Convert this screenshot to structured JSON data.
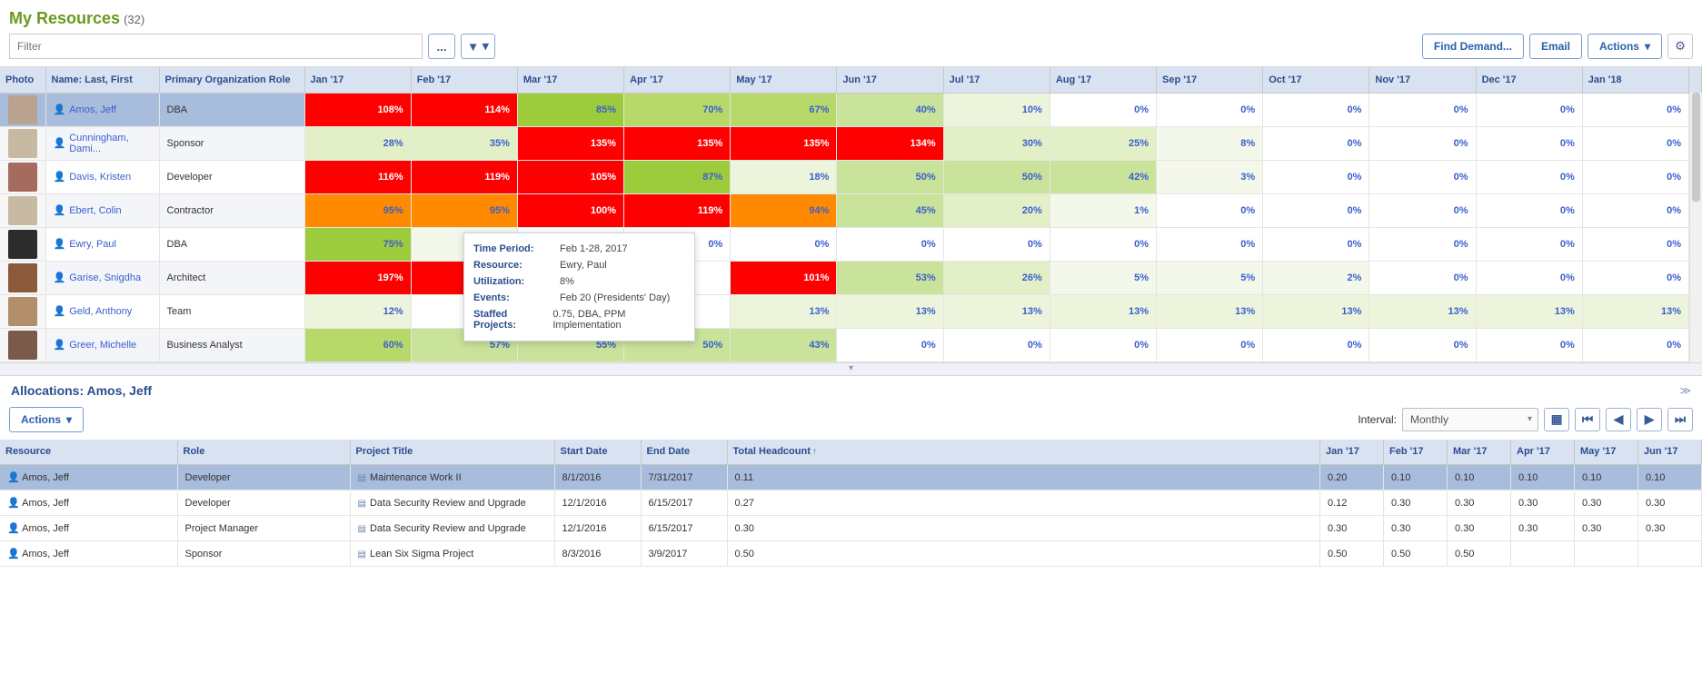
{
  "page": {
    "title": "My Resources",
    "count": "(32)"
  },
  "toolbar": {
    "filter_placeholder": "Filter",
    "more_label": "...",
    "find_demand": "Find Demand...",
    "email": "Email",
    "actions": "Actions"
  },
  "columns": {
    "photo": "Photo",
    "name": "Name: Last, First",
    "role": "Primary Organization Role",
    "months": [
      "Jan '17",
      "Feb '17",
      "Mar '17",
      "Apr '17",
      "May '17",
      "Jun '17",
      "Jul '17",
      "Aug '17",
      "Sep '17",
      "Oct '17",
      "Nov '17",
      "Dec '17",
      "Jan '18"
    ]
  },
  "colors": {
    "over100": "#ff0000",
    "band90": "#ff8a00",
    "band80": "#9ccc3c",
    "band60": "#b7d96a",
    "band40": "#c9e39a",
    "band20": "#e3efc7",
    "band10": "#edf4dc",
    "band1": "#f4f8ea",
    "zero": "#ffffff",
    "header": "#d9e2f0",
    "selected": "#a8bcdc",
    "link": "#3a5fcd"
  },
  "rows": [
    {
      "name": "Amos, Jeff",
      "role": "DBA",
      "avatar": "#b9a28f",
      "selected": true,
      "values": [
        "108%",
        "114%",
        "85%",
        "70%",
        "67%",
        "40%",
        "10%",
        "0%",
        "0%",
        "0%",
        "0%",
        "0%",
        "0%"
      ],
      "bg": [
        "#ff0000",
        "#ff0000",
        "#9ccc3c",
        "#b7d96a",
        "#b7d96a",
        "#c9e39a",
        "#edf4dc",
        "#ffffff",
        "#ffffff",
        "#ffffff",
        "#ffffff",
        "#ffffff",
        "#ffffff"
      ]
    },
    {
      "name": "Cunningham, Dami...",
      "role": "Sponsor",
      "avatar": "#c8b9a2",
      "values": [
        "28%",
        "35%",
        "135%",
        "135%",
        "135%",
        "134%",
        "30%",
        "25%",
        "8%",
        "0%",
        "0%",
        "0%",
        "0%"
      ],
      "bg": [
        "#e3efc7",
        "#e3efc7",
        "#ff0000",
        "#ff0000",
        "#ff0000",
        "#ff0000",
        "#e3efc7",
        "#e3efc7",
        "#f4f8ea",
        "#ffffff",
        "#ffffff",
        "#ffffff",
        "#ffffff"
      ]
    },
    {
      "name": "Davis, Kristen",
      "role": "Developer",
      "avatar": "#a66a5e",
      "values": [
        "116%",
        "119%",
        "105%",
        "87%",
        "18%",
        "50%",
        "50%",
        "42%",
        "3%",
        "0%",
        "0%",
        "0%",
        "0%"
      ],
      "bg": [
        "#ff0000",
        "#ff0000",
        "#ff0000",
        "#9ccc3c",
        "#edf4dc",
        "#c9e39a",
        "#c9e39a",
        "#c9e39a",
        "#f4f8ea",
        "#ffffff",
        "#ffffff",
        "#ffffff",
        "#ffffff"
      ]
    },
    {
      "name": "Ebert, Colin",
      "role": "Contractor",
      "avatar": "#c8b9a2",
      "values": [
        "95%",
        "95%",
        "100%",
        "119%",
        "94%",
        "45%",
        "20%",
        "1%",
        "0%",
        "0%",
        "0%",
        "0%",
        "0%"
      ],
      "bg": [
        "#ff8a00",
        "#ff8a00",
        "#ff0000",
        "#ff0000",
        "#ff8a00",
        "#c9e39a",
        "#e3efc7",
        "#f4f8ea",
        "#ffffff",
        "#ffffff",
        "#ffffff",
        "#ffffff",
        "#ffffff"
      ]
    },
    {
      "name": "Ewry, Paul",
      "role": "DBA",
      "avatar": "#2c2c2c",
      "values": [
        "75%",
        "8%",
        "0%",
        "0%",
        "0%",
        "0%",
        "0%",
        "0%",
        "0%",
        "0%",
        "0%",
        "0%",
        "0%"
      ],
      "bg": [
        "#9ccc3c",
        "#f4f8ea",
        "#ffffff",
        "#ffffff",
        "#ffffff",
        "#ffffff",
        "#ffffff",
        "#ffffff",
        "#ffffff",
        "#ffffff",
        "#ffffff",
        "#ffffff",
        "#ffffff"
      ]
    },
    {
      "name": "Garise, Snigdha",
      "role": "Architect",
      "avatar": "#8a5a3a",
      "values": [
        "197%",
        "1",
        "",
        "",
        "101%",
        "53%",
        "26%",
        "5%",
        "5%",
        "2%",
        "0%",
        "0%",
        "0%"
      ],
      "bg": [
        "#ff0000",
        "#ff0000",
        "#ffffff",
        "#ffffff",
        "#ff0000",
        "#c9e39a",
        "#e3efc7",
        "#f4f8ea",
        "#f4f8ea",
        "#f4f8ea",
        "#ffffff",
        "#ffffff",
        "#ffffff"
      ]
    },
    {
      "name": "Geld, Anthony",
      "role": "Team",
      "avatar": "#b28f6a",
      "values": [
        "12%",
        "",
        "",
        "",
        "13%",
        "13%",
        "13%",
        "13%",
        "13%",
        "13%",
        "13%",
        "13%",
        "13%"
      ],
      "bg": [
        "#edf4dc",
        "#ffffff",
        "#ffffff",
        "#ffffff",
        "#edf4dc",
        "#edf4dc",
        "#edf4dc",
        "#edf4dc",
        "#edf4dc",
        "#edf4dc",
        "#edf4dc",
        "#edf4dc",
        "#edf4dc"
      ]
    },
    {
      "name": "Greer, Michelle",
      "role": "Business Analyst",
      "avatar": "#7a5a4a",
      "values": [
        "60%",
        "57%",
        "55%",
        "50%",
        "43%",
        "0%",
        "0%",
        "0%",
        "0%",
        "0%",
        "0%",
        "0%",
        "0%"
      ],
      "bg": [
        "#b7d96a",
        "#c9e39a",
        "#c9e39a",
        "#c9e39a",
        "#c9e39a",
        "#ffffff",
        "#ffffff",
        "#ffffff",
        "#ffffff",
        "#ffffff",
        "#ffffff",
        "#ffffff",
        "#ffffff"
      ]
    }
  ],
  "tooltip": {
    "labels": {
      "period": "Time Period:",
      "resource": "Resource:",
      "util": "Utilization:",
      "events": "Events:",
      "projects": "Staffed Projects:"
    },
    "period": "Feb 1-28, 2017",
    "resource": "Ewry, Paul",
    "util": "8%",
    "events": "Feb 20 (Presidents' Day)",
    "projects": "0.75, DBA, PPM Implementation"
  },
  "alloc": {
    "title": "Allocations: Amos, Jeff",
    "actions": "Actions",
    "interval_label": "Interval:",
    "interval_value": "Monthly",
    "columns": {
      "resource": "Resource",
      "role": "Role",
      "project": "Project Title",
      "start": "Start Date",
      "end": "End Date",
      "head": "Total Headcount",
      "months": [
        "Jan '17",
        "Feb '17",
        "Mar '17",
        "Apr '17",
        "May '17",
        "Jun '17"
      ]
    },
    "rows": [
      {
        "selected": true,
        "resource": "Amos, Jeff",
        "role": "Developer",
        "project": "Maintenance Work II",
        "start": "8/1/2016",
        "end": "7/31/2017",
        "head": "0.11",
        "months": [
          "0.20",
          "0.10",
          "0.10",
          "0.10",
          "0.10",
          "0.10"
        ]
      },
      {
        "resource": "Amos, Jeff",
        "role": "Developer",
        "project": "Data Security Review and Upgrade",
        "start": "12/1/2016",
        "end": "6/15/2017",
        "head": "0.27",
        "months": [
          "0.12",
          "0.30",
          "0.30",
          "0.30",
          "0.30",
          "0.30"
        ]
      },
      {
        "resource": "Amos, Jeff",
        "role": "Project Manager",
        "project": "Data Security Review and Upgrade",
        "start": "12/1/2016",
        "end": "6/15/2017",
        "head": "0.30",
        "months": [
          "0.30",
          "0.30",
          "0.30",
          "0.30",
          "0.30",
          "0.30"
        ]
      },
      {
        "resource": "Amos, Jeff",
        "role": "Sponsor",
        "project": "Lean Six Sigma Project",
        "start": "8/3/2016",
        "end": "3/9/2017",
        "head": "0.50",
        "months": [
          "0.50",
          "0.50",
          "0.50",
          "",
          "",
          ""
        ]
      }
    ]
  }
}
